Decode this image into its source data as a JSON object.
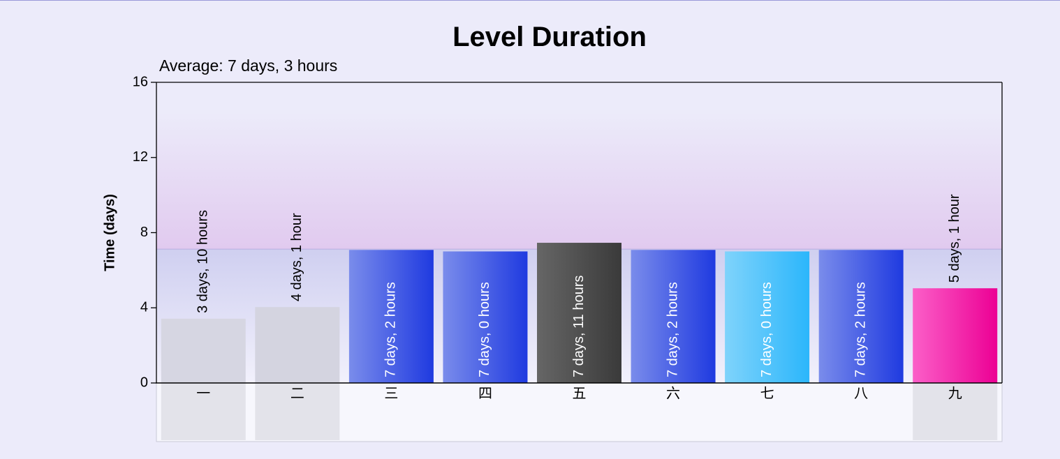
{
  "chart_data": {
    "type": "bar",
    "title": "Level Duration",
    "subtitle": "Average: 7 days, 3 hours",
    "ylabel": "Time (days)",
    "xlabel": "",
    "ylim": [
      0,
      16
    ],
    "yticks": [
      0,
      4,
      8,
      12,
      16
    ],
    "average": 7.125,
    "grid": false,
    "categories": [
      "一",
      "二",
      "三",
      "四",
      "五",
      "六",
      "七",
      "八",
      "九"
    ],
    "values": [
      3.42,
      4.04,
      7.08,
      7.0,
      7.46,
      7.08,
      7.0,
      7.08,
      5.04
    ],
    "data_labels": [
      "3 days, 10 hours",
      "4 days, 1 hour",
      "7 days, 2 hours",
      "7 days, 0 hours",
      "7 days, 11 hours",
      "7 days, 2 hours",
      "7 days, 0 hours",
      "7 days, 2 hours",
      "5 days, 1 hour"
    ],
    "bar_colors": [
      [
        "#d6d6e2",
        "#d6d6e2"
      ],
      [
        "#d4d4e0",
        "#d4d4e0"
      ],
      [
        "#7a8ceb",
        "#1f3ae0"
      ],
      [
        "#7a8ceb",
        "#1f3ae0"
      ],
      [
        "#666666",
        "#3a3a3a"
      ],
      [
        "#7a8ceb",
        "#1f3ae0"
      ],
      [
        "#7fd3fb",
        "#2bb6fb"
      ],
      [
        "#7a8ceb",
        "#1f3ae0"
      ],
      [
        "#fb5fc8",
        "#ec0094"
      ]
    ],
    "label_inside": [
      false,
      false,
      true,
      true,
      true,
      true,
      true,
      true,
      false
    ],
    "below_axis_highlight": [
      true,
      true,
      false,
      false,
      false,
      false,
      false,
      false,
      true
    ]
  }
}
